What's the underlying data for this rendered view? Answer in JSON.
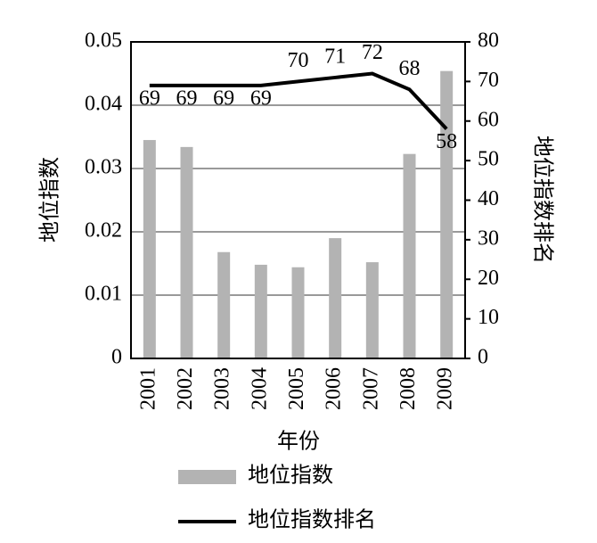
{
  "chart_data": {
    "type": "bar-line",
    "x_label": "年份",
    "y_label": "地位指数",
    "y2_label": "地位指数排名",
    "categories": [
      "2001",
      "2002",
      "2003",
      "2004",
      "2005",
      "2006",
      "2007",
      "2008",
      "2009"
    ],
    "series": [
      {
        "name": "地位指数",
        "type": "bar",
        "color": "#b3b3b3",
        "values": [
          0.0345,
          0.0334,
          0.0168,
          0.0148,
          0.0144,
          0.019,
          0.0152,
          0.0323,
          0.0454
        ]
      },
      {
        "name": "地位指数排名",
        "type": "line",
        "axis": "y2",
        "color": "#000000",
        "values": [
          69,
          69,
          69,
          69,
          70,
          71,
          72,
          68,
          58
        ]
      }
    ],
    "ylim": [
      0,
      0.05
    ],
    "yticks": [
      0,
      0.01,
      0.02,
      0.03,
      0.04,
      0.05
    ],
    "y2lim": [
      0,
      80
    ],
    "y2ticks": [
      0,
      10,
      20,
      30,
      40,
      50,
      60,
      70,
      80
    ],
    "grid": true
  }
}
